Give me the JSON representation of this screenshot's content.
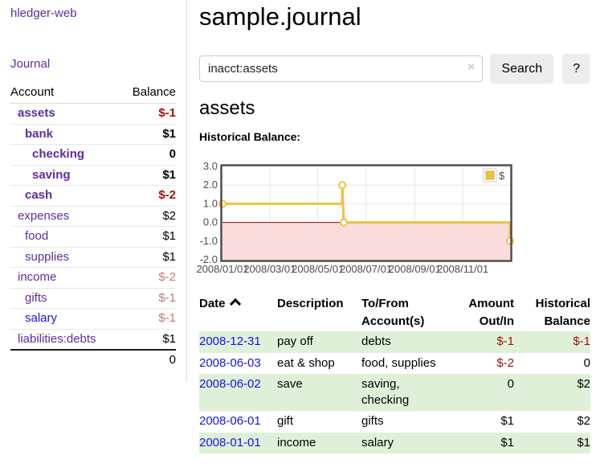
{
  "sidebar": {
    "brand": "hledger-web",
    "journal_link": "Journal",
    "accounts_table": {
      "account_header": "Account",
      "balance_header": "Balance",
      "rows": [
        {
          "name": "assets",
          "balance": "$-1"
        },
        {
          "name": "bank",
          "balance": "$1"
        },
        {
          "name": "checking",
          "balance": "0"
        },
        {
          "name": "saving",
          "balance": "$1"
        },
        {
          "name": "cash",
          "balance": "$-2"
        },
        {
          "name": "expenses",
          "balance": "$2"
        },
        {
          "name": "food",
          "balance": "$1"
        },
        {
          "name": "supplies",
          "balance": "$1"
        },
        {
          "name": "income",
          "balance": "$-2"
        },
        {
          "name": "gifts",
          "balance": "$-1"
        },
        {
          "name": "salary",
          "balance": "$-1"
        },
        {
          "name": "liabilities:debts",
          "balance": "$1"
        }
      ],
      "total": "0"
    }
  },
  "header": {
    "title": "sample.journal"
  },
  "search": {
    "query": "inacct:assets",
    "clear_icon": "×",
    "search_button": "Search",
    "help_button": "?"
  },
  "main": {
    "account_title": "assets",
    "chart_label": "Historical Balance:"
  },
  "chart_data": {
    "type": "line",
    "title": "Historical Balance:",
    "series": [
      {
        "name": "$",
        "color": "#edc240",
        "points": [
          {
            "x": "2008-01-01",
            "y": 1,
            "marker": true
          },
          {
            "x": "2008-06-01",
            "y": 1,
            "marker": false
          },
          {
            "x": "2008-06-01",
            "y": 2,
            "marker": true
          },
          {
            "x": "2008-06-03",
            "y": 0,
            "marker": true
          },
          {
            "x": "2008-12-31",
            "y": 0,
            "marker": false
          },
          {
            "x": "2008-12-31",
            "y": -1,
            "marker": true
          }
        ]
      }
    ],
    "x_range": [
      "2008-01-01",
      "2008-12-31"
    ],
    "y_range": [
      -2,
      3
    ],
    "y_ticks": [
      "3.0",
      "2.0",
      "1.0",
      "0.0",
      "-1.0",
      "-2.0"
    ],
    "x_ticks": [
      {
        "x": "2008-01-01",
        "label": "2008/01/01"
      },
      {
        "x": "2008-03-01",
        "label": "2008/03/01"
      },
      {
        "x": "2008-05-01",
        "label": "2008/05/01"
      },
      {
        "x": "2008-07-01",
        "label": "2008/07/01"
      },
      {
        "x": "2008-09-01",
        "label": "2008/09/01"
      },
      {
        "x": "2008-11-01",
        "label": "2008/11/01"
      }
    ],
    "legend": {
      "label": "$",
      "swatch_color": "#edc240",
      "position": "top-right"
    },
    "zero_line_color": "#8b0000",
    "negative_region_color": "#fbdcdc",
    "grid_color": "#e6e6e6",
    "border_color": "#4d4d4d",
    "grid": true
  },
  "register": {
    "sort": "date-ascending",
    "headers": {
      "date": "Date",
      "description": "Description",
      "accounts": "To/From Account(s)",
      "amount": "Amount Out/In",
      "balance": "Historical Balance"
    },
    "rows": [
      {
        "date": "2008-12-31",
        "description": "pay off",
        "accounts": "debts",
        "amount": "$-1",
        "balance": "$-1"
      },
      {
        "date": "2008-06-03",
        "description": "eat & shop",
        "accounts": "food, supplies",
        "amount": "$-2",
        "balance": "0"
      },
      {
        "date": "2008-06-02",
        "description": "save",
        "accounts": "saving, checking",
        "amount": "0",
        "balance": "$2"
      },
      {
        "date": "2008-06-01",
        "description": "gift",
        "accounts": "gifts",
        "amount": "$1",
        "balance": "$2"
      },
      {
        "date": "2008-01-01",
        "description": "income",
        "accounts": "salary",
        "amount": "$1",
        "balance": "$1"
      }
    ]
  }
}
